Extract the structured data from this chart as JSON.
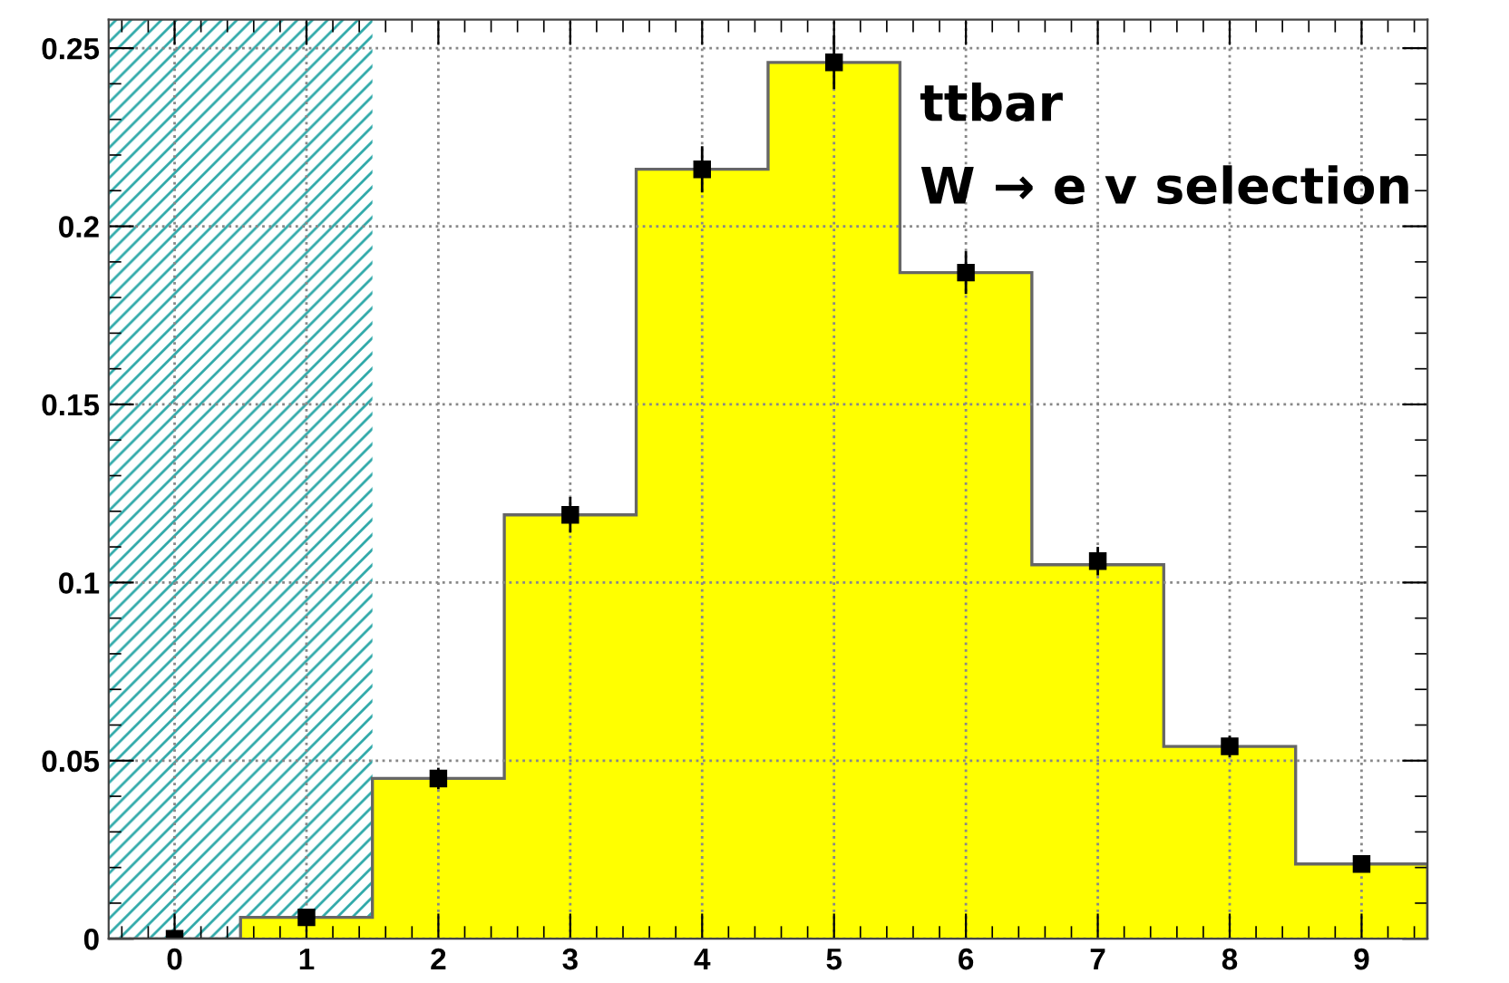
{
  "chart_data": {
    "type": "histogram",
    "bins": [
      -0.5,
      0.5,
      1.5,
      2.5,
      3.5,
      4.5,
      5.5,
      6.5,
      7.5,
      8.5,
      9.5
    ],
    "series": [
      {
        "color": "#ffff00",
        "values": [
          0,
          0.006,
          0.045,
          0.119,
          0.216,
          0.246,
          0.187,
          0.105,
          0.054,
          0.021
        ]
      },
      {
        "type": "scatter",
        "color": "#000000",
        "x": [
          0,
          1,
          2,
          3,
          4,
          5,
          6,
          7,
          8,
          9
        ],
        "values": [
          0,
          0.006,
          0.045,
          0.119,
          0.216,
          0.246,
          0.187,
          0.106,
          0.054,
          0.021
        ],
        "errors": [
          0.001,
          0.002,
          0.003,
          0.005,
          0.0065,
          0.0075,
          0.006,
          0.004,
          0.003,
          0.002
        ]
      }
    ],
    "marker": "square",
    "xlim": [
      -0.5,
      9.5
    ],
    "xticks": [
      0,
      1,
      2,
      3,
      4,
      5,
      6,
      7,
      8,
      9
    ],
    "ylim": [
      0,
      0.258
    ],
    "yticks": [
      0,
      0.05,
      0.1,
      0.15,
      0.2,
      0.25
    ],
    "grid": true,
    "bands": [
      {
        "axis": "x",
        "from": -0.5,
        "to": 1.5,
        "color": "#2fa9a9"
      }
    ],
    "annotations": [
      "ttbar",
      "W → e v selection"
    ]
  }
}
